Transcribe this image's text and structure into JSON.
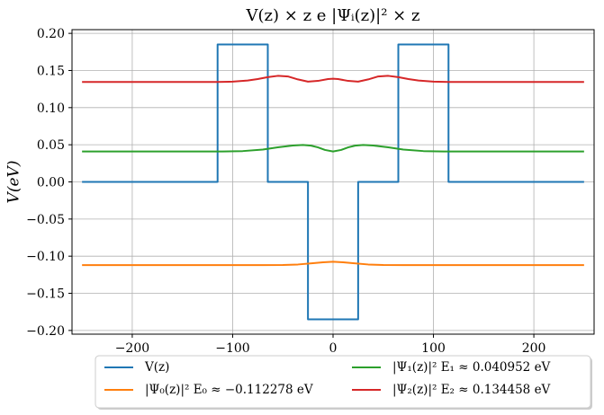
{
  "chart_data": {
    "type": "line",
    "title": "V(z) × z e |Ψᵢ(z)|² × z",
    "xlabel": "",
    "ylabel": "V(eV)",
    "xlim": [
      -260,
      260
    ],
    "ylim": [
      -0.205,
      0.205
    ],
    "xticks": [
      -200,
      -100,
      0,
      100,
      200
    ],
    "xtick_labels": [
      "−200",
      "−100",
      "0",
      "100",
      "200"
    ],
    "yticks": [
      -0.2,
      -0.15,
      -0.1,
      -0.05,
      0.0,
      0.05,
      0.1,
      0.15,
      0.2
    ],
    "ytick_labels": [
      "−0.20",
      "−0.15",
      "−0.10",
      "−0.05",
      "0.00",
      "0.05",
      "0.10",
      "0.15",
      "0.20"
    ],
    "grid": true,
    "legend_position": "bottom-center, below plot, 2 columns",
    "series": [
      {
        "name": "V(z)",
        "color": "#1f77b4",
        "x": [
          -250,
          -115,
          -115,
          -65,
          -65,
          -25,
          -25,
          25,
          25,
          65,
          65,
          115,
          115,
          250
        ],
        "y": [
          0,
          0,
          0.185,
          0.185,
          0,
          0,
          -0.185,
          -0.185,
          0,
          0,
          0.185,
          0.185,
          0,
          0
        ]
      },
      {
        "name": "|Ψ₀(z)|²  E₀ ≈ −0.112278 eV",
        "color": "#ff7f0e",
        "x": [
          -250,
          -100,
          -70,
          -50,
          -35,
          -20,
          -10,
          0,
          10,
          20,
          35,
          50,
          70,
          100,
          250
        ],
        "y": [
          -0.112,
          -0.112,
          -0.112,
          -0.1118,
          -0.1112,
          -0.1095,
          -0.1082,
          -0.1075,
          -0.1082,
          -0.1095,
          -0.1112,
          -0.1118,
          -0.112,
          -0.112,
          -0.112
        ]
      },
      {
        "name": "|Ψ₁(z)|²  E₁ ≈ 0.040952 eV",
        "color": "#2ca02c",
        "x": [
          -250,
          -110,
          -90,
          -70,
          -55,
          -40,
          -30,
          -22,
          -15,
          -8,
          0,
          8,
          15,
          22,
          30,
          40,
          55,
          70,
          90,
          110,
          250
        ],
        "y": [
          0.041,
          0.041,
          0.0415,
          0.0435,
          0.0465,
          0.049,
          0.0497,
          0.0488,
          0.0465,
          0.043,
          0.041,
          0.043,
          0.0465,
          0.0488,
          0.0497,
          0.049,
          0.0465,
          0.0435,
          0.0415,
          0.041,
          0.041
        ]
      },
      {
        "name": "|Ψ₂(z)|²  E₂ ≈ 0.134458 eV",
        "color": "#d62728",
        "x": [
          -250,
          -115,
          -100,
          -85,
          -75,
          -65,
          -55,
          -45,
          -35,
          -25,
          -15,
          -5,
          0,
          5,
          15,
          25,
          35,
          45,
          55,
          65,
          75,
          85,
          100,
          115,
          250
        ],
        "y": [
          0.1345,
          0.1345,
          0.135,
          0.1365,
          0.1385,
          0.141,
          0.1428,
          0.142,
          0.138,
          0.135,
          0.136,
          0.1385,
          0.139,
          0.1385,
          0.136,
          0.135,
          0.138,
          0.142,
          0.1428,
          0.141,
          0.1385,
          0.1365,
          0.135,
          0.1345,
          0.1345
        ]
      }
    ]
  }
}
